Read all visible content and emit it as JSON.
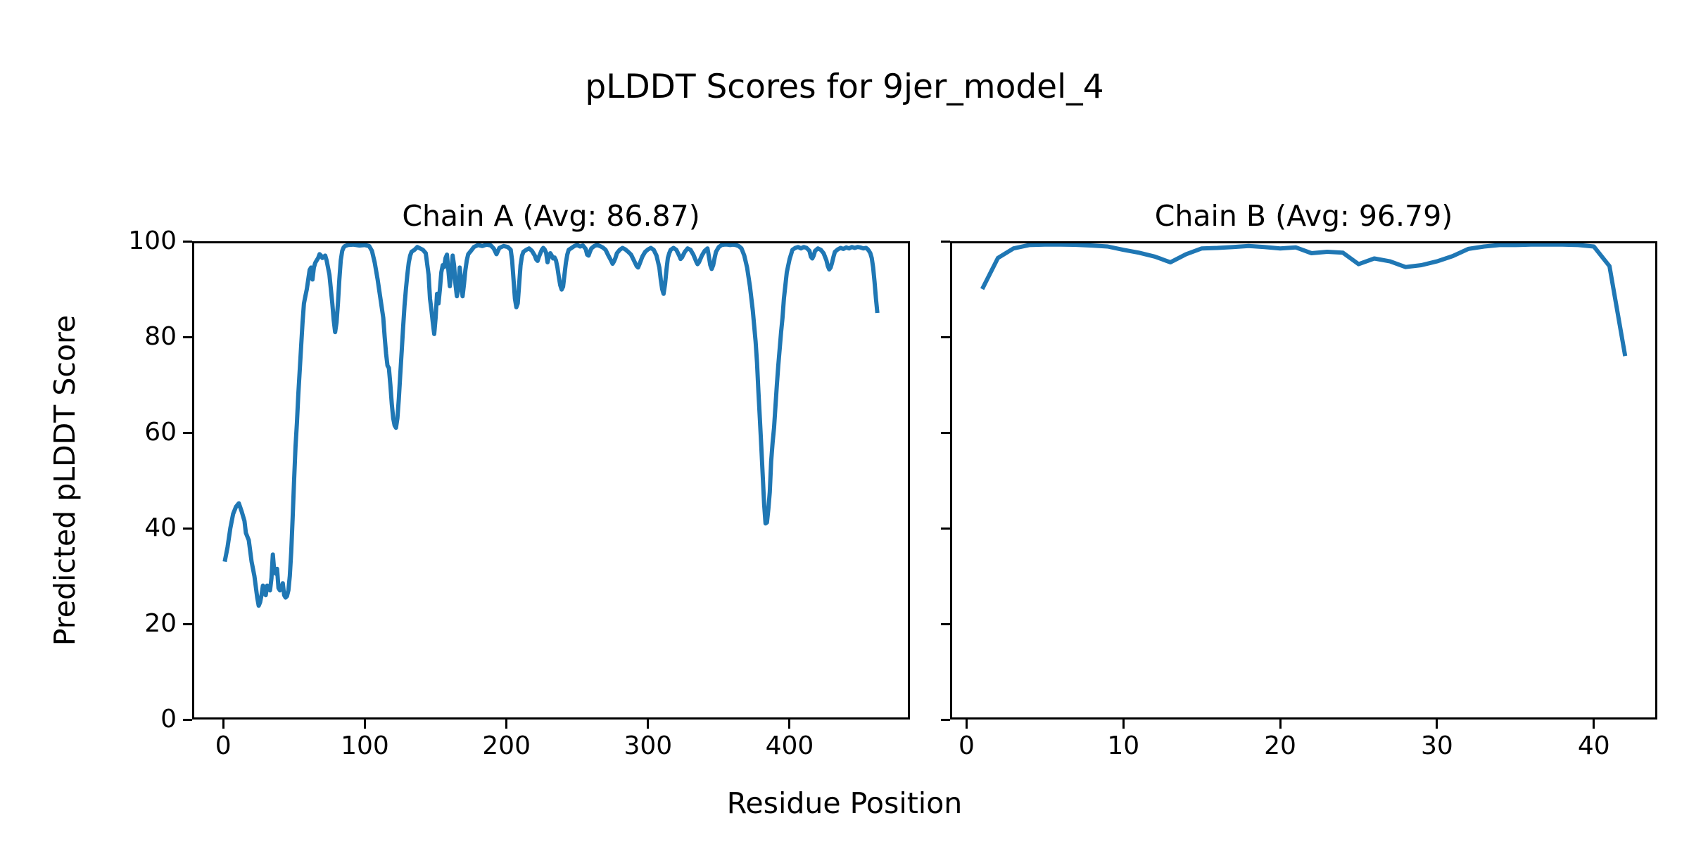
{
  "figure": {
    "suptitle": "pLDDT Scores for 9jer_model_4",
    "xlabel": "Residue Position",
    "ylabel": "Predicted pLDDT Score",
    "line_color": "#1f77b4",
    "background_color": "#ffffff",
    "spine_color": "#000000"
  },
  "chart_data": [
    {
      "type": "line",
      "title": "Chain A (Avg: 86.87)",
      "avg_plddt": 86.87,
      "xlabel": "Residue Position",
      "ylabel": "Predicted pLDDT Score",
      "xlim": [
        -22,
        485
      ],
      "ylim": [
        0,
        100
      ],
      "xticks": [
        0,
        100,
        200,
        300,
        400
      ],
      "yticks": [
        0,
        20,
        40,
        60,
        80,
        100
      ],
      "show_ytick_labels": true,
      "grid": false,
      "legend": "none",
      "points": [
        [
          1,
          33
        ],
        [
          3,
          36
        ],
        [
          5,
          40
        ],
        [
          7,
          43
        ],
        [
          9,
          44.5
        ],
        [
          11,
          45.2
        ],
        [
          13,
          43.5
        ],
        [
          15,
          41.5
        ],
        [
          16,
          39
        ],
        [
          18,
          37.5
        ],
        [
          20,
          33
        ],
        [
          22,
          30
        ],
        [
          24,
          25.5
        ],
        [
          25,
          23.8
        ],
        [
          26,
          24.5
        ],
        [
          27,
          26
        ],
        [
          28,
          28
        ],
        [
          29,
          26.5
        ],
        [
          30,
          26
        ],
        [
          31,
          28
        ],
        [
          32,
          27.5
        ],
        [
          33,
          27
        ],
        [
          34,
          29.5
        ],
        [
          35,
          34.5
        ],
        [
          36,
          31
        ],
        [
          37,
          30.5
        ],
        [
          38,
          31.5
        ],
        [
          39,
          27.5
        ],
        [
          40,
          27
        ],
        [
          41,
          27.5
        ],
        [
          42,
          28.5
        ],
        [
          43,
          26
        ],
        [
          44,
          25.5
        ],
        [
          45,
          25.8
        ],
        [
          46,
          27
        ],
        [
          47,
          30
        ],
        [
          48,
          35
        ],
        [
          49,
          42
        ],
        [
          50,
          50
        ],
        [
          51,
          57
        ],
        [
          52,
          62
        ],
        [
          53,
          68
        ],
        [
          54,
          73
        ],
        [
          55,
          78
        ],
        [
          56,
          83
        ],
        [
          57,
          87
        ],
        [
          58,
          88.5
        ],
        [
          59,
          90
        ],
        [
          60,
          92
        ],
        [
          61,
          94
        ],
        [
          62,
          94.5
        ],
        [
          63,
          92
        ],
        [
          64,
          94.5
        ],
        [
          65,
          95.5
        ],
        [
          66,
          96
        ],
        [
          67,
          96.5
        ],
        [
          68,
          97.3
        ],
        [
          69,
          97
        ],
        [
          70,
          96.5
        ],
        [
          71,
          96.8
        ],
        [
          72,
          97
        ],
        [
          73,
          96
        ],
        [
          75,
          93
        ],
        [
          77,
          87
        ],
        [
          78,
          83.5
        ],
        [
          79,
          81
        ],
        [
          80,
          83
        ],
        [
          81,
          87
        ],
        [
          82,
          92
        ],
        [
          83,
          96
        ],
        [
          84,
          98
        ],
        [
          85,
          98.7
        ],
        [
          86,
          99
        ],
        [
          88,
          99.2
        ],
        [
          92,
          99.3
        ],
        [
          96,
          99.1
        ],
        [
          100,
          99.2
        ],
        [
          103,
          99
        ],
        [
          105,
          98
        ],
        [
          107,
          95.5
        ],
        [
          109,
          92
        ],
        [
          111,
          88
        ],
        [
          113,
          84
        ],
        [
          114,
          80
        ],
        [
          115,
          76.5
        ],
        [
          116,
          74
        ],
        [
          117,
          73.5
        ],
        [
          118,
          70
        ],
        [
          119,
          66
        ],
        [
          120,
          63
        ],
        [
          121,
          61.5
        ],
        [
          122,
          61
        ],
        [
          123,
          63
        ],
        [
          124,
          67
        ],
        [
          125,
          72
        ],
        [
          126,
          77
        ],
        [
          127,
          82
        ],
        [
          128,
          86.5
        ],
        [
          129,
          90
        ],
        [
          130,
          93
        ],
        [
          131,
          95.5
        ],
        [
          132,
          97
        ],
        [
          133,
          97.8
        ],
        [
          135,
          98.2
        ],
        [
          137,
          98.8
        ],
        [
          139,
          98.5
        ],
        [
          141,
          98.2
        ],
        [
          143,
          97.5
        ],
        [
          145,
          93
        ],
        [
          146,
          88
        ],
        [
          147,
          85.7
        ],
        [
          148,
          83
        ],
        [
          149,
          80.6
        ],
        [
          150,
          84
        ],
        [
          151,
          89
        ],
        [
          152,
          87
        ],
        [
          153,
          90
        ],
        [
          154,
          93.5
        ],
        [
          155,
          95
        ],
        [
          156,
          94.6
        ],
        [
          157,
          96.5
        ],
        [
          158,
          97.2
        ],
        [
          159,
          94
        ],
        [
          160,
          90.6
        ],
        [
          161,
          93
        ],
        [
          162,
          97
        ],
        [
          163,
          95
        ],
        [
          164,
          91
        ],
        [
          165,
          88.5
        ],
        [
          166,
          90
        ],
        [
          167,
          94.5
        ],
        [
          168,
          92
        ],
        [
          169,
          88.5
        ],
        [
          170,
          91
        ],
        [
          171,
          94
        ],
        [
          172,
          96
        ],
        [
          173,
          97.3
        ],
        [
          175,
          98
        ],
        [
          177,
          98.8
        ],
        [
          180,
          99.2
        ],
        [
          183,
          99
        ],
        [
          186,
          99.3
        ],
        [
          189,
          99.1
        ],
        [
          191,
          98.5
        ],
        [
          193,
          97.3
        ],
        [
          195,
          98.6
        ],
        [
          198,
          99
        ],
        [
          201,
          98.8
        ],
        [
          203,
          98.2
        ],
        [
          204,
          96
        ],
        [
          205,
          92
        ],
        [
          206,
          88
        ],
        [
          207,
          86.2
        ],
        [
          208,
          87
        ],
        [
          209,
          91
        ],
        [
          210,
          95
        ],
        [
          211,
          97
        ],
        [
          212,
          97.8
        ],
        [
          214,
          98.2
        ],
        [
          216,
          98.5
        ],
        [
          218,
          98
        ],
        [
          220,
          97
        ],
        [
          221,
          96.2
        ],
        [
          222,
          95.9
        ],
        [
          223,
          96.8
        ],
        [
          224,
          97.5
        ],
        [
          225,
          98.2
        ],
        [
          226,
          98.6
        ],
        [
          227,
          98.3
        ],
        [
          228,
          97.6
        ],
        [
          229,
          95.6
        ],
        [
          230,
          96.8
        ],
        [
          231,
          97.5
        ],
        [
          232,
          97
        ],
        [
          233,
          96.4
        ],
        [
          234,
          96.6
        ],
        [
          235,
          96
        ],
        [
          236,
          94.5
        ],
        [
          237,
          92.5
        ],
        [
          238,
          90.8
        ],
        [
          239,
          89.9
        ],
        [
          240,
          90.5
        ],
        [
          241,
          93
        ],
        [
          242,
          95.5
        ],
        [
          243,
          97.2
        ],
        [
          244,
          98.2
        ],
        [
          246,
          98.6
        ],
        [
          248,
          99
        ],
        [
          250,
          99.2
        ],
        [
          252,
          98.9
        ],
        [
          254,
          99.1
        ],
        [
          256,
          98.4
        ],
        [
          257,
          97.2
        ],
        [
          258,
          97
        ],
        [
          259,
          97.8
        ],
        [
          260,
          98.5
        ],
        [
          262,
          99
        ],
        [
          264,
          99.2
        ],
        [
          266,
          99
        ],
        [
          268,
          98.7
        ],
        [
          270,
          98.2
        ],
        [
          272,
          97
        ],
        [
          274,
          95.9
        ],
        [
          275,
          95.3
        ],
        [
          276,
          95.8
        ],
        [
          277,
          96.5
        ],
        [
          278,
          97.5
        ],
        [
          280,
          98.2
        ],
        [
          282,
          98.6
        ],
        [
          284,
          98.3
        ],
        [
          286,
          97.8
        ],
        [
          288,
          97.2
        ],
        [
          290,
          96
        ],
        [
          292,
          94.8
        ],
        [
          293,
          94.5
        ],
        [
          294,
          95.2
        ],
        [
          296,
          96.8
        ],
        [
          298,
          97.8
        ],
        [
          300,
          98.3
        ],
        [
          302,
          98.6
        ],
        [
          304,
          98.2
        ],
        [
          306,
          97
        ],
        [
          308,
          94.5
        ],
        [
          309,
          92
        ],
        [
          310,
          90
        ],
        [
          311,
          89
        ],
        [
          312,
          91
        ],
        [
          313,
          94
        ],
        [
          314,
          96.5
        ],
        [
          315,
          97.5
        ],
        [
          316,
          98.2
        ],
        [
          318,
          98.6
        ],
        [
          320,
          98.2
        ],
        [
          322,
          97
        ],
        [
          323,
          96.3
        ],
        [
          324,
          96.6
        ],
        [
          326,
          97.8
        ],
        [
          328,
          98.5
        ],
        [
          330,
          98.2
        ],
        [
          332,
          97.2
        ],
        [
          334,
          95.8
        ],
        [
          335,
          95.2
        ],
        [
          336,
          95.6
        ],
        [
          338,
          97
        ],
        [
          340,
          98
        ],
        [
          342,
          98.5
        ],
        [
          343,
          96.8
        ],
        [
          344,
          95
        ],
        [
          345,
          94.2
        ],
        [
          346,
          95
        ],
        [
          347,
          96.5
        ],
        [
          348,
          97.8
        ],
        [
          350,
          98.8
        ],
        [
          352,
          99.2
        ],
        [
          354,
          99.3
        ],
        [
          356,
          99.3
        ],
        [
          358,
          99.2
        ],
        [
          360,
          99.3
        ],
        [
          362,
          99.2
        ],
        [
          364,
          99
        ],
        [
          366,
          98.5
        ],
        [
          368,
          97
        ],
        [
          370,
          94.5
        ],
        [
          372,
          90.5
        ],
        [
          374,
          85.5
        ],
        [
          376,
          79
        ],
        [
          377,
          74.6
        ],
        [
          378,
          68.5
        ],
        [
          379,
          63
        ],
        [
          380,
          57
        ],
        [
          381,
          51
        ],
        [
          382,
          45
        ],
        [
          383,
          41
        ],
        [
          384,
          41.2
        ],
        [
          385,
          44
        ],
        [
          386,
          47.5
        ],
        [
          387,
          54
        ],
        [
          388,
          58
        ],
        [
          389,
          61
        ],
        [
          390,
          65.5
        ],
        [
          391,
          70
        ],
        [
          392,
          74
        ],
        [
          393,
          77.5
        ],
        [
          394,
          81
        ],
        [
          395,
          84
        ],
        [
          396,
          88
        ],
        [
          398,
          93.5
        ],
        [
          400,
          96.3
        ],
        [
          402,
          98.2
        ],
        [
          404,
          98.6
        ],
        [
          406,
          98.8
        ],
        [
          408,
          98.5
        ],
        [
          410,
          98.8
        ],
        [
          412,
          98.6
        ],
        [
          414,
          98
        ],
        [
          415,
          96.8
        ],
        [
          416,
          96.4
        ],
        [
          417,
          97
        ],
        [
          418,
          98
        ],
        [
          420,
          98.5
        ],
        [
          422,
          98.2
        ],
        [
          424,
          97.5
        ],
        [
          426,
          96
        ],
        [
          427,
          94.8
        ],
        [
          428,
          94.1
        ],
        [
          429,
          94.5
        ],
        [
          430,
          95.5
        ],
        [
          431,
          96.8
        ],
        [
          432,
          97.8
        ],
        [
          434,
          98.3
        ],
        [
          436,
          98.6
        ],
        [
          438,
          98.4
        ],
        [
          440,
          98.7
        ],
        [
          442,
          98.5
        ],
        [
          444,
          98.8
        ],
        [
          446,
          98.6
        ],
        [
          448,
          98.8
        ],
        [
          450,
          98.7
        ],
        [
          452,
          98.5
        ],
        [
          454,
          98.6
        ],
        [
          455,
          98.4
        ],
        [
          456,
          98
        ],
        [
          457,
          97.5
        ],
        [
          458,
          96.5
        ],
        [
          459,
          94.5
        ],
        [
          460,
          91.5
        ],
        [
          461,
          88
        ],
        [
          462,
          85
        ]
      ]
    },
    {
      "type": "line",
      "title": "Chain B (Avg: 96.79)",
      "avg_plddt": 96.79,
      "xlabel": "Residue Position",
      "ylabel": "Predicted pLDDT Score",
      "xlim": [
        -1.05,
        44.05
      ],
      "ylim": [
        0,
        100
      ],
      "xticks": [
        0,
        10,
        20,
        30,
        40
      ],
      "yticks": [
        0,
        20,
        40,
        60,
        80,
        100
      ],
      "show_ytick_labels": false,
      "grid": false,
      "legend": "none",
      "points": [
        [
          1,
          90
        ],
        [
          2,
          96.5
        ],
        [
          3,
          98.5
        ],
        [
          4,
          99.2
        ],
        [
          5,
          99.3
        ],
        [
          6,
          99.3
        ],
        [
          7,
          99.25
        ],
        [
          8,
          99.1
        ],
        [
          9,
          98.9
        ],
        [
          10,
          98.2
        ],
        [
          11,
          97.6
        ],
        [
          12,
          96.8
        ],
        [
          13,
          95.6
        ],
        [
          14,
          97.3
        ],
        [
          15,
          98.5
        ],
        [
          16,
          98.6
        ],
        [
          17,
          98.8
        ],
        [
          18,
          99
        ],
        [
          19,
          98.8
        ],
        [
          20,
          98.5
        ],
        [
          21,
          98.7
        ],
        [
          22,
          97.5
        ],
        [
          23,
          97.8
        ],
        [
          24,
          97.6
        ],
        [
          25,
          95.2
        ],
        [
          26,
          96.4
        ],
        [
          27,
          95.8
        ],
        [
          28,
          94.6
        ],
        [
          29,
          95
        ],
        [
          30,
          95.8
        ],
        [
          31,
          96.9
        ],
        [
          32,
          98.4
        ],
        [
          33,
          98.9
        ],
        [
          34,
          99.2
        ],
        [
          35,
          99.2
        ],
        [
          36,
          99.3
        ],
        [
          37,
          99.3
        ],
        [
          38,
          99.3
        ],
        [
          39,
          99.2
        ],
        [
          40,
          98.9
        ],
        [
          41,
          94.8
        ],
        [
          42,
          76
        ]
      ]
    }
  ]
}
